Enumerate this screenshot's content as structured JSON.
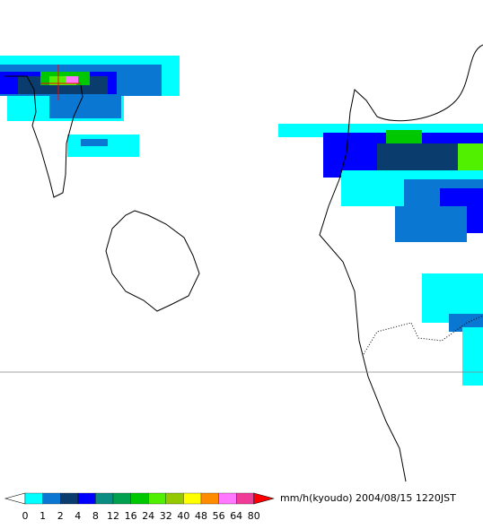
{
  "legend": {
    "ticks": [
      0,
      1,
      2,
      4,
      8,
      12,
      16,
      24,
      32,
      40,
      48,
      56,
      64,
      80
    ],
    "colors": [
      "#00ffff",
      "#0a78d2",
      "#0a3c6e",
      "#0000ff",
      "#0a8c82",
      "#00a050",
      "#00c800",
      "#50f000",
      "#96c800",
      "#ffff00",
      "#ff8c00",
      "#ff78ff",
      "#f03c96"
    ],
    "under_color": "#ffffff",
    "over_color": "#ff0000",
    "unit": "mm/h(kyoudo)",
    "timestamp": "2004/08/15 1220JST"
  }
}
